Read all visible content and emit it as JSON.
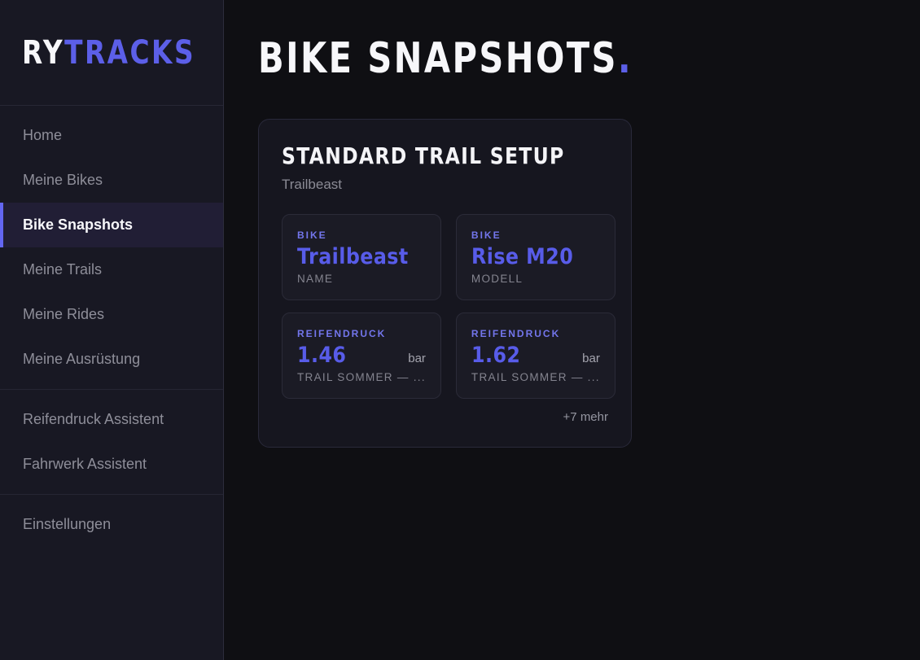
{
  "app": {
    "logo_primary": "RY",
    "logo_accent": "TRACKS"
  },
  "sidebar": {
    "groups": [
      {
        "items": [
          {
            "label": "Home",
            "active": false
          },
          {
            "label": "Meine Bikes",
            "active": false
          },
          {
            "label": "Bike Snapshots",
            "active": true
          },
          {
            "label": "Meine Trails",
            "active": false
          },
          {
            "label": "Meine Rides",
            "active": false
          },
          {
            "label": "Meine Ausrüstung",
            "active": false
          }
        ]
      },
      {
        "items": [
          {
            "label": "Reifendruck Assistent",
            "active": false
          },
          {
            "label": "Fahrwerk Assistent",
            "active": false
          }
        ]
      },
      {
        "items": [
          {
            "label": "Einstellungen",
            "active": false
          }
        ]
      }
    ]
  },
  "main": {
    "title": "BIKE SNAPSHOTS",
    "title_period": "."
  },
  "snapshot_card": {
    "title": "STANDARD TRAIL SETUP",
    "subtitle": "Trailbeast",
    "tiles": [
      {
        "label": "BIKE",
        "value": "Trailbeast",
        "unit": "",
        "sub": "NAME"
      },
      {
        "label": "BIKE",
        "value": "Rise M20",
        "unit": "",
        "sub": "MODELL"
      },
      {
        "label": "REIFENDRUCK",
        "value": "1.46",
        "unit": "bar",
        "sub": "TRAIL SOMMER — ..."
      },
      {
        "label": "REIFENDRUCK",
        "value": "1.62",
        "unit": "bar",
        "sub": "TRAIL SOMMER — ..."
      }
    ],
    "more_label": "+7 mehr"
  },
  "colors": {
    "accent": "#5c5fe8",
    "accent_label": "#7376ec",
    "page_bg": "#0f0f13",
    "sidebar_bg": "#181823",
    "card_bg": "#16161f",
    "tile_bg": "#1b1b25",
    "active_item_bg": "#211e35",
    "muted_text": "#8e8e99"
  }
}
